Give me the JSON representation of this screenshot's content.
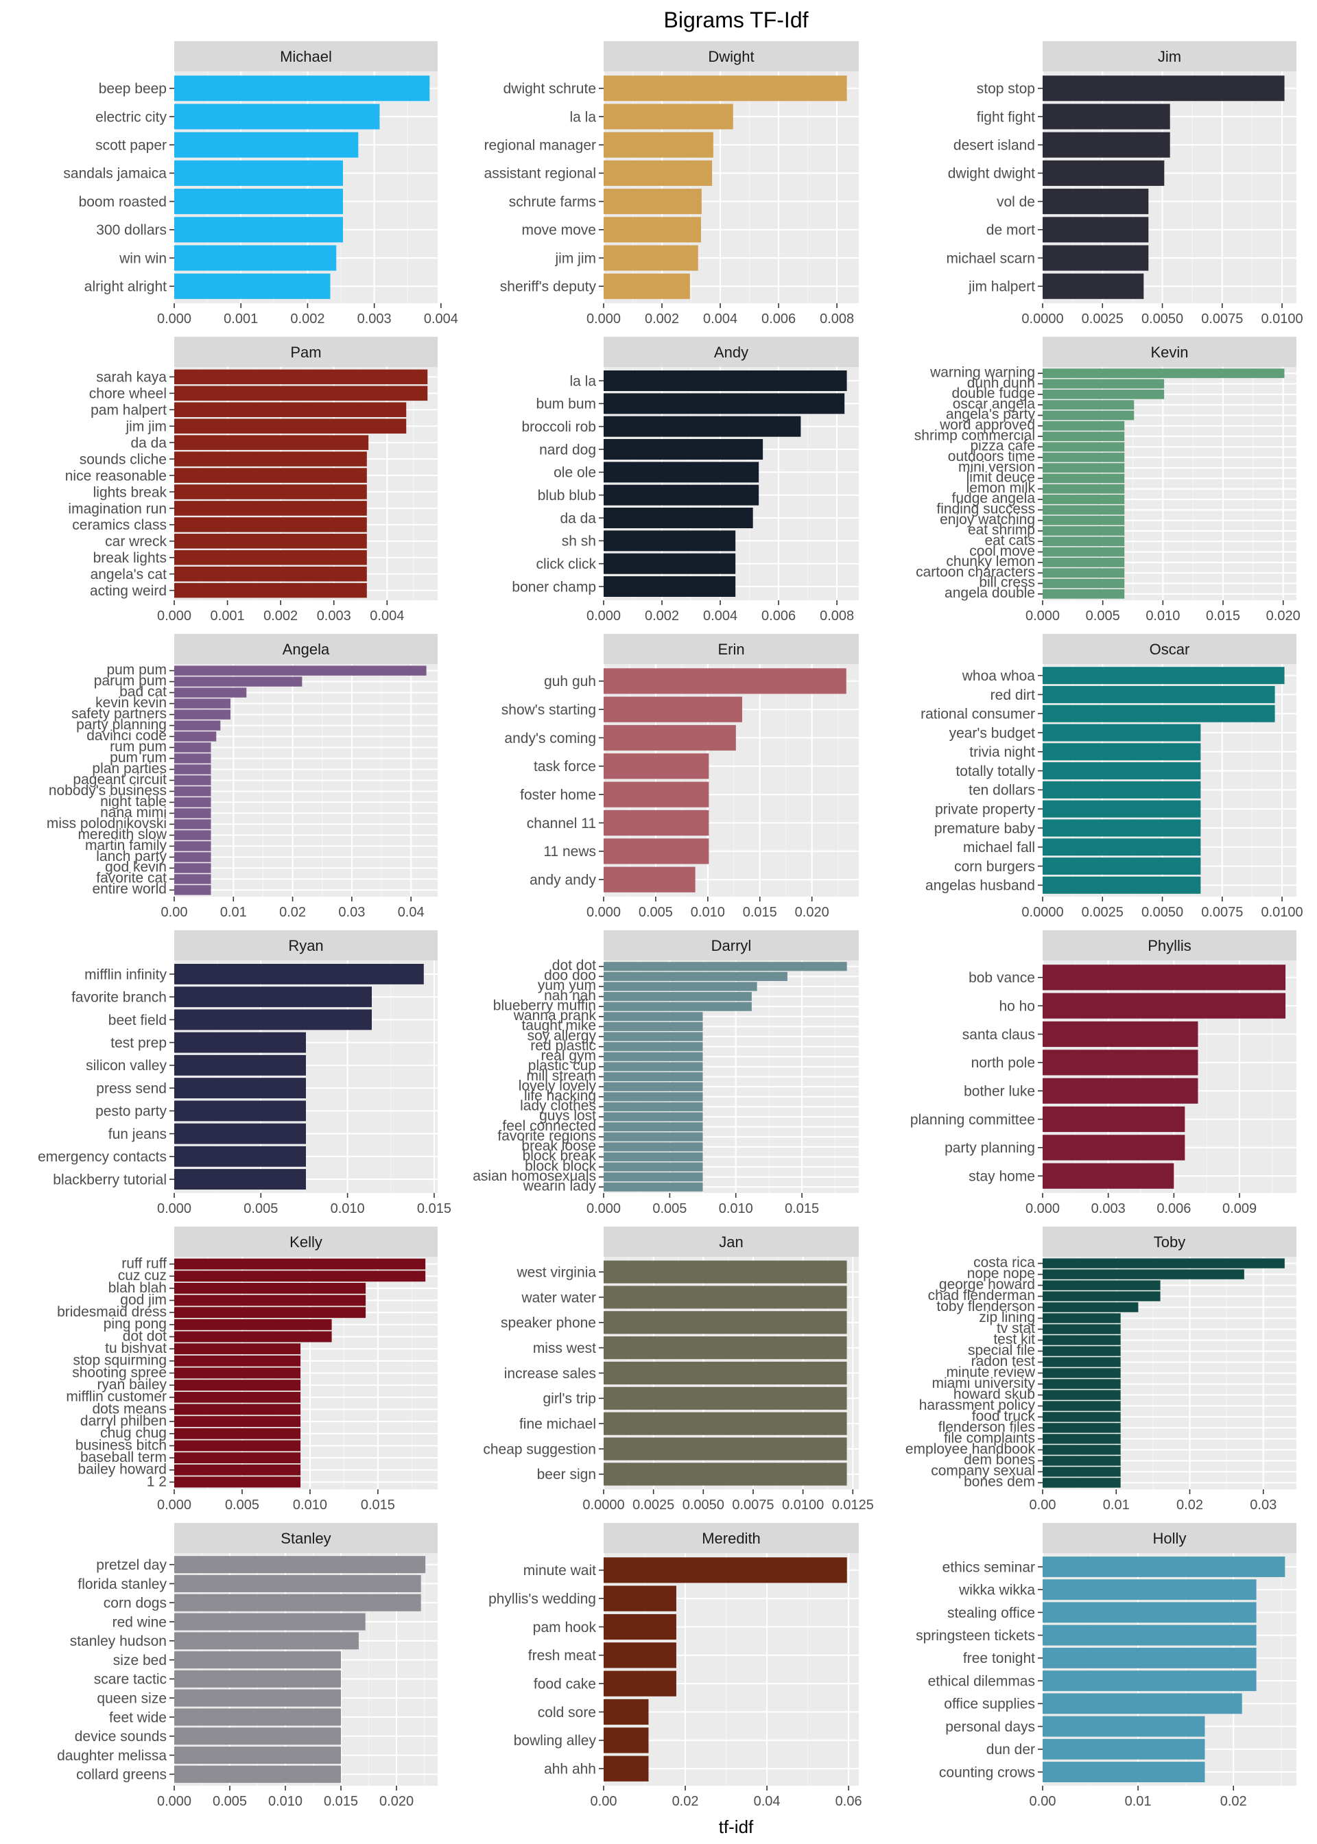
{
  "chart_data": {
    "type": "bar",
    "orientation": "horizontal",
    "title": "Bigrams TF-Idf",
    "xlabel": "tf-idf",
    "ylabel": "",
    "layout": {
      "columns": 3,
      "rows": 6
    },
    "facets": [
      {
        "name": "Michael",
        "color": "#1fb6f1",
        "xlim": [
          0,
          0.00395
        ],
        "ticks": [
          "0.000",
          "0.001",
          "0.002",
          "0.003",
          "0.004"
        ],
        "tick_values": [
          0,
          0.001,
          0.002,
          0.003,
          0.004
        ],
        "categories": [
          "beep beep",
          "electric city",
          "scott paper",
          "sandals jamaica",
          "boom roasted",
          "300 dollars",
          "win win",
          "alright alright"
        ],
        "values": [
          0.00383,
          0.00308,
          0.00276,
          0.00253,
          0.00253,
          0.00253,
          0.00243,
          0.00234
        ]
      },
      {
        "name": "Dwight",
        "color": "#d1a153",
        "xlim": [
          0,
          0.00875
        ],
        "ticks": [
          "0.000",
          "0.002",
          "0.004",
          "0.006",
          "0.008"
        ],
        "tick_values": [
          0,
          0.002,
          0.004,
          0.006,
          0.008
        ],
        "categories": [
          "dwight schrute",
          "la la",
          "regional manager",
          "assistant regional",
          "schrute farms",
          "move move",
          "jim jim",
          "sheriff's deputy"
        ],
        "values": [
          0.00834,
          0.00444,
          0.00376,
          0.00372,
          0.00336,
          0.00334,
          0.00324,
          0.00296
        ]
      },
      {
        "name": "Jim",
        "color": "#2d2d3a",
        "xlim": [
          0,
          0.0106
        ],
        "ticks": [
          "0.0000",
          "0.0025",
          "0.0050",
          "0.0075",
          "0.0100"
        ],
        "tick_values": [
          0,
          0.0025,
          0.005,
          0.0075,
          0.01
        ],
        "categories": [
          "stop stop",
          "fight fight",
          "desert island",
          "dwight dwight",
          "vol de",
          "de mort",
          "michael scarn",
          "jim halpert"
        ],
        "values": [
          0.0101,
          0.00532,
          0.00532,
          0.00508,
          0.00442,
          0.00442,
          0.00442,
          0.00422
        ]
      },
      {
        "name": "Pam",
        "color": "#8a2418",
        "xlim": [
          0,
          0.00495
        ],
        "ticks": [
          "0.000",
          "0.001",
          "0.002",
          "0.003",
          "0.004"
        ],
        "tick_values": [
          0,
          0.001,
          0.002,
          0.003,
          0.004
        ],
        "categories": [
          "sarah kaya",
          "chore wheel",
          "pam halpert",
          "jim jim",
          "da da",
          "sounds cliche",
          "nice reasonable",
          "lights break",
          "imagination run",
          "ceramics class",
          "car wreck",
          "break lights",
          "angela's cat",
          "acting weird"
        ],
        "values": [
          0.00476,
          0.00476,
          0.00436,
          0.00436,
          0.00365,
          0.00362,
          0.00362,
          0.00362,
          0.00362,
          0.00362,
          0.00362,
          0.00362,
          0.00362,
          0.00362
        ]
      },
      {
        "name": "Andy",
        "color": "#131e2a",
        "xlim": [
          0,
          0.00875
        ],
        "ticks": [
          "0.000",
          "0.002",
          "0.004",
          "0.006",
          "0.008"
        ],
        "tick_values": [
          0,
          0.002,
          0.004,
          0.006,
          0.008
        ],
        "categories": [
          "la la",
          "bum bum",
          "broccoli rob",
          "nard dog",
          "ole ole",
          "blub blub",
          "da da",
          "sh sh",
          "click click",
          "boner champ"
        ],
        "values": [
          0.00834,
          0.00826,
          0.00676,
          0.00546,
          0.00532,
          0.00532,
          0.00512,
          0.00452,
          0.00452,
          0.00452
        ]
      },
      {
        "name": "Kevin",
        "color": "#5f9e78",
        "xlim": [
          0,
          0.0211
        ],
        "ticks": [
          "0.000",
          "0.005",
          "0.010",
          "0.015",
          "0.020"
        ],
        "tick_values": [
          0,
          0.005,
          0.01,
          0.015,
          0.02
        ],
        "categories": [
          "warning warning",
          "dunh dunh",
          "double fudge",
          "oscar angela",
          "angela's party",
          "word approved",
          "shrimp commercial",
          "pizza cafe",
          "outdoors time",
          "mini version",
          "limit deuce",
          "lemon milk",
          "fudge angela",
          "finding success",
          "enjoy watching",
          "eat shrimp",
          "eat cats",
          "cool move",
          "chunky lemon",
          "cartoon characters",
          "bill cress",
          "angela double"
        ],
        "values": [
          0.0201,
          0.0101,
          0.0101,
          0.0076,
          0.0076,
          0.0068,
          0.0068,
          0.0068,
          0.0068,
          0.0068,
          0.0068,
          0.0068,
          0.0068,
          0.0068,
          0.0068,
          0.0068,
          0.0068,
          0.0068,
          0.0068,
          0.0068,
          0.0068,
          0.0068
        ]
      },
      {
        "name": "Angela",
        "color": "#7b5b8a",
        "xlim": [
          0,
          0.0445
        ],
        "ticks": [
          "0.00",
          "0.01",
          "0.02",
          "0.03",
          "0.04"
        ],
        "tick_values": [
          0,
          0.01,
          0.02,
          0.03,
          0.04
        ],
        "categories": [
          "pum pum",
          "parum pum",
          "bad cat",
          "kevin kevin",
          "safety partners",
          "party planning",
          "davinci code",
          "rum pum",
          "pum rum",
          "plan parties",
          "pageant circuit",
          "nobody's business",
          "night table",
          "nana mimi",
          "miss polodnikovski",
          "meredith slow",
          "martin family",
          "lanch party",
          "god kevin",
          "favorite cat",
          "entire world"
        ],
        "values": [
          0.0426,
          0.0216,
          0.0122,
          0.0095,
          0.0095,
          0.0078,
          0.0071,
          0.0062,
          0.0062,
          0.0062,
          0.0062,
          0.0062,
          0.0062,
          0.0062,
          0.0062,
          0.0062,
          0.0062,
          0.0062,
          0.0062,
          0.0062,
          0.0062
        ]
      },
      {
        "name": "Erin",
        "color": "#ad6067",
        "xlim": [
          0,
          0.0245
        ],
        "ticks": [
          "0.000",
          "0.005",
          "0.010",
          "0.015",
          "0.020"
        ],
        "tick_values": [
          0,
          0.005,
          0.01,
          0.015,
          0.02
        ],
        "categories": [
          "guh guh",
          "show's starting",
          "andy's coming",
          "task force",
          "foster home",
          "channel 11",
          "11 news",
          "andy andy"
        ],
        "values": [
          0.0233,
          0.0133,
          0.0127,
          0.0101,
          0.0101,
          0.0101,
          0.0101,
          0.0088
        ]
      },
      {
        "name": "Oscar",
        "color": "#137d7e",
        "xlim": [
          0,
          0.0106
        ],
        "ticks": [
          "0.0000",
          "0.0025",
          "0.0050",
          "0.0075",
          "0.0100"
        ],
        "tick_values": [
          0,
          0.0025,
          0.005,
          0.0075,
          0.01
        ],
        "categories": [
          "whoa whoa",
          "red dirt",
          "rational consumer",
          "year's budget",
          "trivia night",
          "totally totally",
          "ten dollars",
          "private property",
          "premature baby",
          "michael fall",
          "corn burgers",
          "angelas husband"
        ],
        "values": [
          0.0101,
          0.0097,
          0.0097,
          0.0066,
          0.0066,
          0.0066,
          0.0066,
          0.0066,
          0.0066,
          0.0066,
          0.0066,
          0.0066
        ]
      },
      {
        "name": "Ryan",
        "color": "#2a2b4a",
        "xlim": [
          0,
          0.0152
        ],
        "ticks": [
          "0.000",
          "0.005",
          "0.010",
          "0.015"
        ],
        "tick_values": [
          0,
          0.005,
          0.01,
          0.015
        ],
        "categories": [
          "mifflin infinity",
          "favorite branch",
          "beet field",
          "test prep",
          "silicon valley",
          "press send",
          "pesto party",
          "fun jeans",
          "emergency contacts",
          "blackberry tutorial"
        ],
        "values": [
          0.0144,
          0.0114,
          0.0114,
          0.0076,
          0.0076,
          0.0076,
          0.0076,
          0.0076,
          0.0076,
          0.0076
        ]
      },
      {
        "name": "Darryl",
        "color": "#6a8e93",
        "xlim": [
          0,
          0.0193
        ],
        "ticks": [
          "0.000",
          "0.005",
          "0.010",
          "0.015"
        ],
        "tick_values": [
          0,
          0.005,
          0.01,
          0.015
        ],
        "categories": [
          "dot dot",
          "doo doo",
          "yum yum",
          "nah nah",
          "blueberry muffin",
          "wanna prank",
          "taught mike",
          "soy allergy",
          "red plastic",
          "real gym",
          "plastic cup",
          "mill stream",
          "lovely lovely",
          "life hacking",
          "lady clothes",
          "guys lost",
          "feel connected",
          "favorite regions",
          "break loose",
          "block break",
          "block block",
          "asian homosexuals",
          "wearin lady"
        ],
        "values": [
          0.0184,
          0.0139,
          0.0116,
          0.0112,
          0.0112,
          0.0075,
          0.0075,
          0.0075,
          0.0075,
          0.0075,
          0.0075,
          0.0075,
          0.0075,
          0.0075,
          0.0075,
          0.0075,
          0.0075,
          0.0075,
          0.0075,
          0.0075,
          0.0075,
          0.0075,
          0.0075
        ]
      },
      {
        "name": "Phyllis",
        "color": "#7b1c34",
        "xlim": [
          0,
          0.0116
        ],
        "ticks": [
          "0.000",
          "0.003",
          "0.006",
          "0.009"
        ],
        "tick_values": [
          0,
          0.003,
          0.006,
          0.009
        ],
        "categories": [
          "bob vance",
          "ho ho",
          "santa claus",
          "north pole",
          "bother luke",
          "planning committee",
          "party planning",
          "stay home"
        ],
        "values": [
          0.0111,
          0.0111,
          0.0071,
          0.0071,
          0.0071,
          0.0065,
          0.0065,
          0.006
        ]
      },
      {
        "name": "Kelly",
        "color": "#780c1a",
        "xlim": [
          0,
          0.0194
        ],
        "ticks": [
          "0.000",
          "0.005",
          "0.010",
          "0.015"
        ],
        "tick_values": [
          0,
          0.005,
          0.01,
          0.015
        ],
        "categories": [
          "ruff ruff",
          "cuz cuz",
          "blah blah",
          "god jim",
          "bridesmaid dress",
          "ping pong",
          "dot dot",
          "tu bishvat",
          "stop squirming",
          "shooting spree",
          "ryan bailey",
          "mifflin customer",
          "dots means",
          "darryl philben",
          "chug chug",
          "business bitch",
          "baseball term",
          "bailey howard",
          "1 2"
        ],
        "values": [
          0.0185,
          0.0185,
          0.0141,
          0.0141,
          0.0141,
          0.0116,
          0.0116,
          0.0093,
          0.0093,
          0.0093,
          0.0093,
          0.0093,
          0.0093,
          0.0093,
          0.0093,
          0.0093,
          0.0093,
          0.0093,
          0.0093
        ]
      },
      {
        "name": "Jan",
        "color": "#6c6b55",
        "xlim": [
          0,
          0.0128
        ],
        "ticks": [
          "0.0000",
          "0.0025",
          "0.0050",
          "0.0075",
          "0.0100",
          "0.0125"
        ],
        "tick_values": [
          0,
          0.0025,
          0.005,
          0.0075,
          0.01,
          0.0125
        ],
        "categories": [
          "west virginia",
          "water water",
          "speaker phone",
          "miss west",
          "increase sales",
          "girl's trip",
          "fine michael",
          "cheap suggestion",
          "beer sign"
        ],
        "values": [
          0.0122,
          0.0122,
          0.0122,
          0.0122,
          0.0122,
          0.0122,
          0.0122,
          0.0122,
          0.0122
        ]
      },
      {
        "name": "Toby",
        "color": "#0f4a44",
        "xlim": [
          0,
          0.0345
        ],
        "ticks": [
          "0.00",
          "0.01",
          "0.02",
          "0.03"
        ],
        "tick_values": [
          0,
          0.01,
          0.02,
          0.03
        ],
        "categories": [
          "costa rica",
          "nope nope",
          "george howard",
          "chad flenderman",
          "toby flenderson",
          "zip lining",
          "tv stat",
          "test kit",
          "special file",
          "radon test",
          "minute review",
          "miami university",
          "howard skub",
          "harassment policy",
          "food truck",
          "flenderson files",
          "file complaints",
          "employee handbook",
          "dem bones",
          "company sexual",
          "bones dem"
        ],
        "values": [
          0.0329,
          0.0274,
          0.016,
          0.016,
          0.013,
          0.0106,
          0.0106,
          0.0106,
          0.0106,
          0.0106,
          0.0106,
          0.0106,
          0.0106,
          0.0106,
          0.0106,
          0.0106,
          0.0106,
          0.0106,
          0.0106,
          0.0106,
          0.0106
        ]
      },
      {
        "name": "Stanley",
        "color": "#8e8d94",
        "xlim": [
          0,
          0.0237
        ],
        "ticks": [
          "0.000",
          "0.005",
          "0.010",
          "0.015",
          "0.020"
        ],
        "tick_values": [
          0,
          0.005,
          0.01,
          0.015,
          0.02
        ],
        "categories": [
          "pretzel day",
          "florida stanley",
          "corn dogs",
          "red wine",
          "stanley hudson",
          "size bed",
          "scare tactic",
          "queen size",
          "feet wide",
          "device sounds",
          "daughter melissa",
          "collard greens"
        ],
        "values": [
          0.0226,
          0.0222,
          0.0222,
          0.0172,
          0.0166,
          0.015,
          0.015,
          0.015,
          0.015,
          0.015,
          0.015,
          0.015
        ]
      },
      {
        "name": "Meredith",
        "color": "#6b2611",
        "xlim": [
          0,
          0.0625
        ],
        "ticks": [
          "0.00",
          "0.02",
          "0.04",
          "0.06"
        ],
        "tick_values": [
          0,
          0.02,
          0.04,
          0.06
        ],
        "categories": [
          "minute wait",
          "phyllis's wedding",
          "pam hook",
          "fresh meat",
          "food cake",
          "cold sore",
          "bowling alley",
          "ahh ahh"
        ],
        "values": [
          0.0596,
          0.0178,
          0.0178,
          0.0178,
          0.0178,
          0.011,
          0.011,
          0.011
        ]
      },
      {
        "name": "Holly",
        "color": "#4e9bb5",
        "xlim": [
          0,
          0.0266
        ],
        "ticks": [
          "0.00",
          "0.01",
          "0.02"
        ],
        "tick_values": [
          0,
          0.01,
          0.02
        ],
        "categories": [
          "ethics seminar",
          "wikka wikka",
          "stealing office",
          "springsteen tickets",
          "free tonight",
          "ethical dilemmas",
          "office supplies",
          "personal days",
          "dun der",
          "counting crows"
        ],
        "values": [
          0.0254,
          0.0224,
          0.0224,
          0.0224,
          0.0224,
          0.0224,
          0.0209,
          0.017,
          0.017,
          0.017
        ]
      }
    ]
  }
}
